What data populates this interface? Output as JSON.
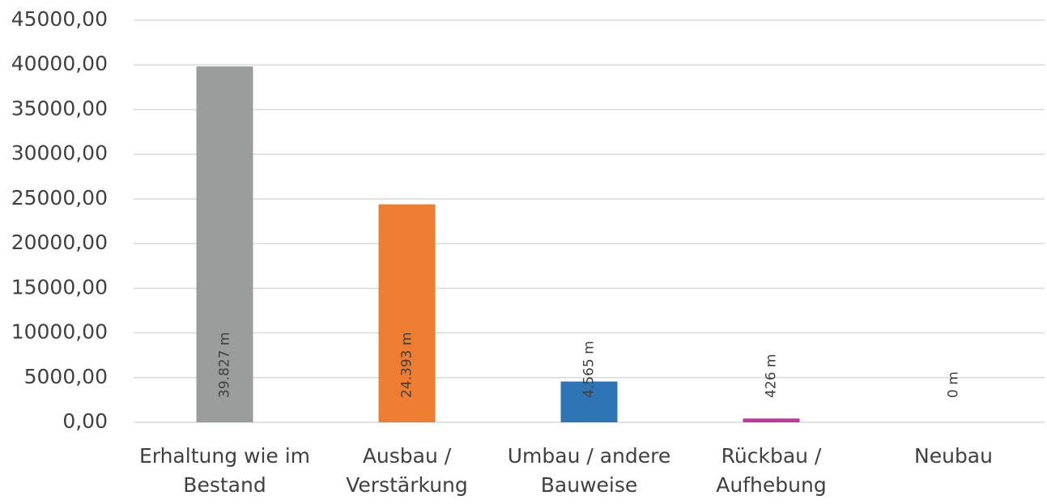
{
  "chart_data": {
    "type": "bar",
    "categories": [
      "Erhaltung wie im\nBestand",
      "Ausbau /\nVerstärkung",
      "Umbau / andere\nBauweise",
      "Rückbau /\nAufhebung",
      "Neubau"
    ],
    "values": [
      39827,
      24393,
      4565,
      426,
      0
    ],
    "value_labels": [
      "39.827 m",
      "24.393 m",
      "4.565 m",
      "426 m",
      "0 m"
    ],
    "colors": [
      "#9b9c9c",
      "#ed7d31",
      "#2e75b6",
      "#c0399a",
      "#5b9bd5"
    ],
    "ylim": [
      0,
      45000
    ],
    "yticks": [
      {
        "value": 0,
        "label": "0,00"
      },
      {
        "value": 5000,
        "label": "5000,00"
      },
      {
        "value": 10000,
        "label": "10000,00"
      },
      {
        "value": 15000,
        "label": "15000,00"
      },
      {
        "value": 20000,
        "label": "20000,00"
      },
      {
        "value": 25000,
        "label": "25000,00"
      },
      {
        "value": 30000,
        "label": "30000,00"
      },
      {
        "value": 35000,
        "label": "35000,00"
      },
      {
        "value": 40000,
        "label": "40000,00"
      },
      {
        "value": 45000,
        "label": "45000,00"
      }
    ],
    "grid": true
  }
}
